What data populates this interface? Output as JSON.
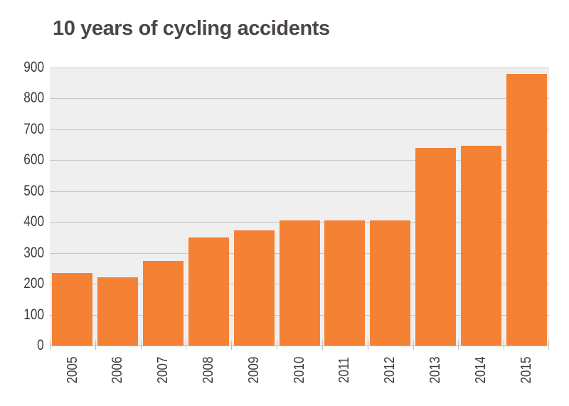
{
  "title": "10 years of cycling accidents",
  "colors": {
    "bar": "#f58134",
    "plot_background": "#f0eff0",
    "gridline": "#c7c6c6",
    "axis_text": "#3d3b3a",
    "title_text": "#4b4643"
  },
  "chart_data": {
    "type": "bar",
    "title": "10 years of cycling accidents",
    "categories": [
      "2005",
      "2006",
      "2007",
      "2008",
      "2009",
      "2010",
      "2011",
      "2012",
      "2013",
      "2014",
      "2015"
    ],
    "values": [
      235,
      220,
      274,
      351,
      373,
      405,
      405,
      405,
      640,
      646,
      880
    ],
    "xlabel": "",
    "ylabel": "",
    "ylim": [
      0,
      900
    ],
    "ytick_step": 100,
    "yticks": [
      0,
      100,
      200,
      300,
      400,
      500,
      600,
      700,
      800,
      900
    ],
    "grid": true,
    "legend": "none",
    "x_label_rotation_deg": -90
  }
}
